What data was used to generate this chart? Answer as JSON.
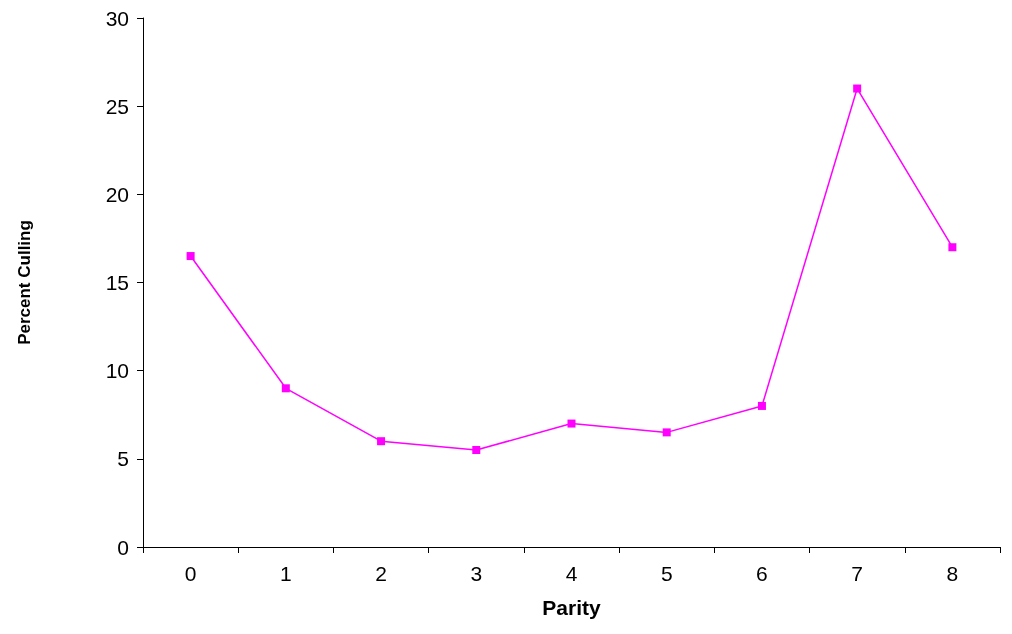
{
  "chart_data": {
    "type": "line",
    "xlabel": "Parity",
    "ylabel": "Percent Culling",
    "categories": [
      "0",
      "1",
      "2",
      "3",
      "4",
      "5",
      "6",
      "7",
      "8"
    ],
    "series": [
      {
        "color": "#ff00ff",
        "values": [
          16.5,
          9,
          6,
          5.5,
          7,
          6.5,
          8,
          26,
          17
        ]
      }
    ],
    "ylim": [
      0,
      30
    ],
    "yticks": [
      0,
      5,
      10,
      15,
      20,
      25,
      30
    ],
    "grid": false,
    "marker": "square",
    "line_style": "solid"
  }
}
